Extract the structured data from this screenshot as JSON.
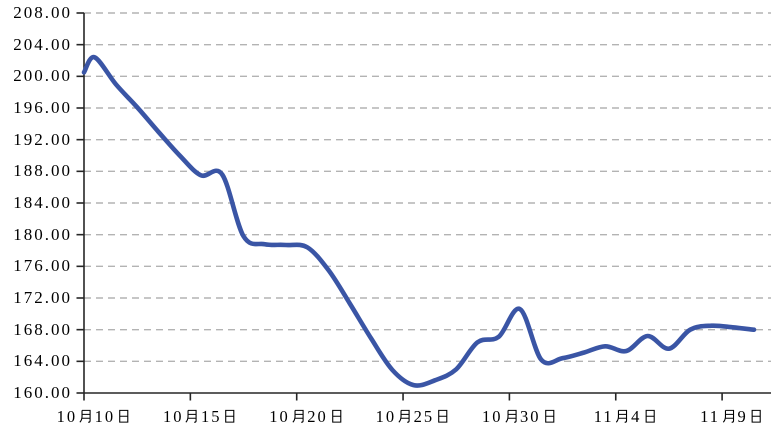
{
  "chart_data": {
    "type": "line",
    "title": "",
    "legend": "none",
    "series_name": "price",
    "x": [
      "10月10日",
      "10月11日",
      "10月12日",
      "10月13日",
      "10月14日",
      "10月15日",
      "10月16日",
      "10月17日",
      "10月18日",
      "10月19日",
      "10月20日",
      "10月21日",
      "10月22日",
      "10月23日",
      "10月24日",
      "10月25日",
      "10月26日",
      "10月27日",
      "10月28日",
      "10月29日",
      "10月30日",
      "10月31日",
      "11月1日",
      "11月2日",
      "11月3日",
      "11月4日",
      "11月5日",
      "11月6日",
      "11月7日",
      "11月8日",
      "11月9日",
      "11月10日"
    ],
    "values": [
      202.4,
      199.0,
      196.1,
      193.0,
      190.0,
      187.5,
      187.6,
      179.8,
      178.8,
      178.7,
      178.4,
      175.5,
      171.3,
      166.9,
      162.9,
      161.0,
      161.6,
      163.0,
      166.4,
      167.1,
      170.6,
      164.2,
      164.4,
      165.1,
      165.9,
      165.3,
      167.2,
      165.6,
      168.0,
      168.5,
      168.3,
      168.0
    ],
    "edge_lead_in_value": 200.5,
    "x_tick_labels": [
      "10月10日",
      "10月15日",
      "10月20日",
      "10月25日",
      "10月30日",
      "11月4日",
      "11月9日"
    ],
    "y_tick_labels": [
      "208.00",
      "204.00",
      "200.00",
      "196.00",
      "192.00",
      "188.00",
      "184.00",
      "180.00",
      "176.00",
      "172.00",
      "168.00",
      "164.00",
      "160.00"
    ],
    "y_ticks": [
      208,
      204,
      200,
      196,
      192,
      188,
      184,
      180,
      176,
      172,
      168,
      164,
      160
    ],
    "ylim": [
      160,
      208
    ],
    "y_tick_step": 4,
    "grid": "horizontal-dashed",
    "colors": {
      "line": "#3a55a5",
      "grid": "#b3b3b3",
      "axis": "#262626",
      "text": "#000000",
      "background": "#ffffff"
    }
  }
}
